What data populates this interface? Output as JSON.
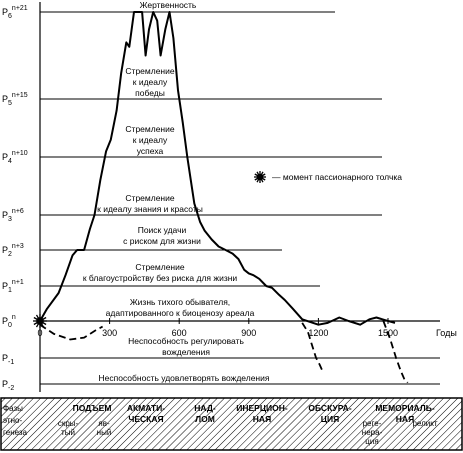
{
  "chart_data": {
    "type": "line",
    "x_unit_label": "Годы",
    "x_ticks": [
      0,
      300,
      600,
      900,
      1200,
      1500
    ],
    "levels": [
      {
        "key": "P6",
        "main": "P",
        "sub": "6",
        "sup": "n+21",
        "text": "Жертвенность"
      },
      {
        "key": "P5",
        "main": "P",
        "sub": "5",
        "sup": "n+15",
        "text": "Стремление к идеалу победы"
      },
      {
        "key": "P4",
        "main": "P",
        "sub": "4",
        "sup": "n+10",
        "text": "Стремление к идеалу успеха"
      },
      {
        "key": "P3",
        "main": "P",
        "sub": "3",
        "sup": "n+6",
        "text": "Стремление к идеалу знания и красоты"
      },
      {
        "key": "P2",
        "main": "P",
        "sub": "2",
        "sup": "n+3",
        "text": "Поиск удачи с риском для жизни"
      },
      {
        "key": "P1",
        "main": "P",
        "sub": "1",
        "sup": "n+1",
        "text": "Стремление к благоустройству без риска для жизни"
      },
      {
        "key": "P0",
        "main": "P",
        "sub": "0",
        "sup": "n",
        "text": "Жизнь тихого обывателя, адаптированного к биоценозу ареала"
      },
      {
        "key": "P-1",
        "main": "P",
        "sub": "-1",
        "sup": "",
        "text": "Неспособность регулировать вожделения"
      },
      {
        "key": "P-2",
        "main": "P",
        "sub": "-2",
        "sup": "",
        "text": "Неспособность удовлетворять вожделения"
      }
    ],
    "legend": {
      "icon": "burst-icon",
      "text": "— момент пассионарного толчка"
    },
    "main_curve": [
      [
        0,
        0
      ],
      [
        30,
        0.35
      ],
      [
        80,
        0.8
      ],
      [
        110,
        1.3
      ],
      [
        140,
        1.85
      ],
      [
        160,
        2.0
      ],
      [
        190,
        2.0
      ],
      [
        215,
        2.6
      ],
      [
        235,
        3.0
      ],
      [
        260,
        3.6
      ],
      [
        285,
        4.1
      ],
      [
        305,
        4.3
      ],
      [
        330,
        4.8
      ],
      [
        350,
        5.3
      ],
      [
        372,
        5.65
      ],
      [
        385,
        5.6
      ],
      [
        405,
        6.0
      ],
      [
        425,
        6.25
      ],
      [
        440,
        6.0
      ],
      [
        455,
        5.5
      ],
      [
        470,
        5.8
      ],
      [
        488,
        6.2
      ],
      [
        505,
        5.9
      ],
      [
        520,
        5.5
      ],
      [
        540,
        5.8
      ],
      [
        558,
        6.0
      ],
      [
        575,
        5.7
      ],
      [
        595,
        5.1
      ],
      [
        615,
        4.6
      ],
      [
        635,
        4.0
      ],
      [
        650,
        3.6
      ],
      [
        665,
        3.2
      ],
      [
        690,
        2.8
      ],
      [
        710,
        2.55
      ],
      [
        740,
        2.3
      ],
      [
        770,
        2.1
      ],
      [
        800,
        2.0
      ],
      [
        830,
        1.9
      ],
      [
        855,
        1.75
      ],
      [
        880,
        1.45
      ],
      [
        900,
        1.35
      ],
      [
        920,
        1.3
      ],
      [
        945,
        1.2
      ],
      [
        975,
        1.0
      ],
      [
        1000,
        0.95
      ],
      [
        1030,
        0.75
      ],
      [
        1055,
        0.6
      ],
      [
        1090,
        0.35
      ],
      [
        1130,
        0.05
      ],
      [
        1200,
        -0.1
      ],
      [
        1240,
        -0.05
      ],
      [
        1290,
        0.1
      ],
      [
        1330,
        0.0
      ],
      [
        1380,
        -0.1
      ],
      [
        1420,
        0.05
      ],
      [
        1450,
        0.1
      ],
      [
        1490,
        0.02
      ],
      [
        1530,
        -0.05
      ]
    ],
    "dashed_curve_left": [
      [
        0,
        -0.1
      ],
      [
        60,
        -0.35
      ],
      [
        130,
        -0.5
      ],
      [
        190,
        -0.45
      ],
      [
        240,
        -0.25
      ],
      [
        270,
        -0.15
      ]
    ],
    "dashed_curve_right": [
      [
        1130,
        -0.05
      ],
      [
        1155,
        -0.3
      ],
      [
        1170,
        -0.6
      ],
      [
        1190,
        -1.0
      ],
      [
        1205,
        -1.25
      ],
      [
        1215,
        -1.45
      ]
    ],
    "dashed_curve_end": [
      [
        1480,
        0.0
      ],
      [
        1510,
        -0.5
      ],
      [
        1535,
        -1.0
      ],
      [
        1555,
        -1.5
      ],
      [
        1570,
        -1.8
      ],
      [
        1585,
        -1.95
      ]
    ],
    "phases_label": "Фазы этно-генеза",
    "phases": [
      {
        "name": "ПОДЪЕМ",
        "sub": [
          "скры-тый",
          "яв-ный"
        ]
      },
      {
        "name": "АКМАТИ-ЧЕСКАЯ",
        "sub": []
      },
      {
        "name": "НАД-ЛОМ",
        "sub": []
      },
      {
        "name": "ИНЕРЦИОН-НАЯ",
        "sub": []
      },
      {
        "name": "ОБСКУРА-ЦИЯ",
        "sub": []
      },
      {
        "name": "МЕМОРИАЛЬ-НАЯ",
        "sub": [
          "реге-нера-ция",
          "реликт"
        ]
      }
    ]
  }
}
